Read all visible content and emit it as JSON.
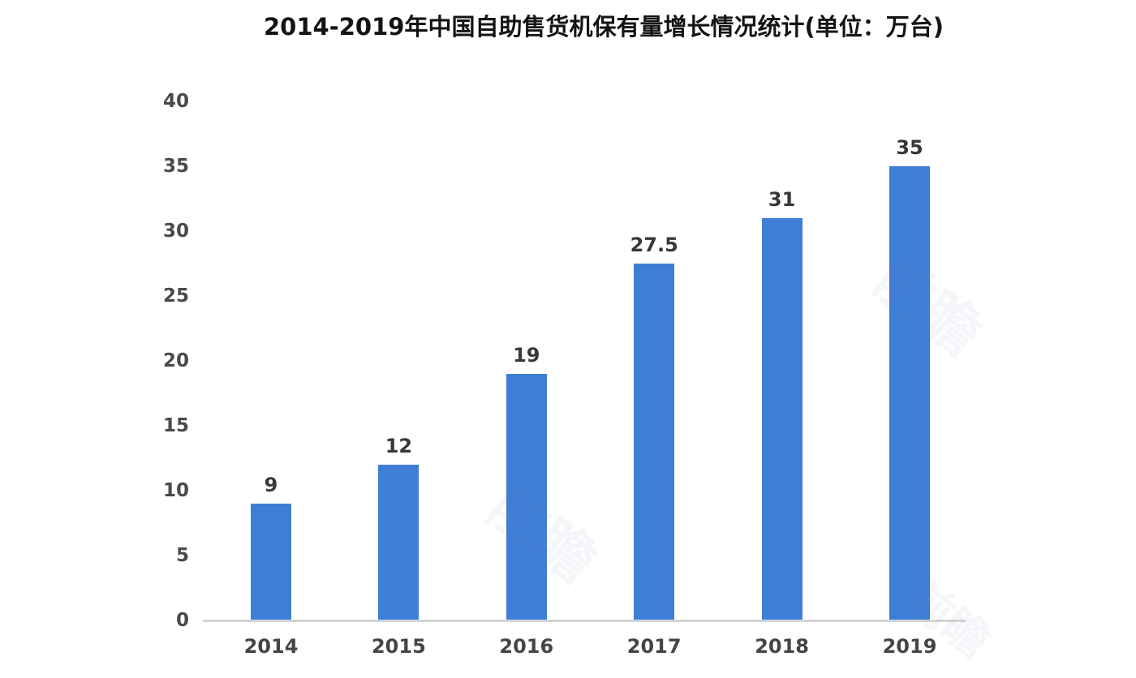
{
  "chart_data": {
    "type": "bar",
    "title": "2014-2019年中国自助售货机保有量增长情况统计(单位：万台)",
    "categories": [
      "2014",
      "2015",
      "2016",
      "2017",
      "2018",
      "2019"
    ],
    "values": [
      9,
      12,
      19,
      27.5,
      31,
      35
    ],
    "value_labels": [
      "9",
      "12",
      "19",
      "27.5",
      "31",
      "35"
    ],
    "series_name": "中国自助售货机保有量",
    "unit": "万台",
    "xlabel": "",
    "ylabel": "",
    "ylim": [
      0,
      40
    ],
    "y_ticks": [
      0,
      5,
      10,
      15,
      20,
      25,
      30,
      35,
      40
    ],
    "grid": false,
    "legend_position": "none",
    "bar_color": "#3E7ED7",
    "axis_line_color": "#d4d4d4",
    "tick_label_color": "#4a4a4a",
    "value_label_color": "#383838",
    "title_color": "#141414",
    "background_color": "#ffffff"
  },
  "watermark": {
    "text": "前瞻"
  }
}
